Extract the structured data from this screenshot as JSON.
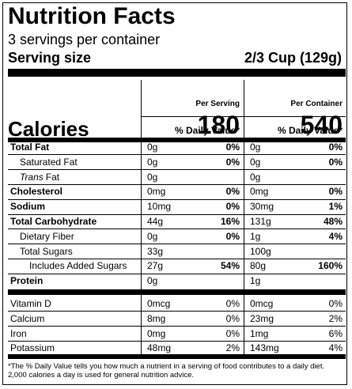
{
  "title": "Nutrition Facts",
  "servings": "3 servings per container",
  "serving_size": {
    "label": "Serving size",
    "value": "2/3 Cup (129g)"
  },
  "columns": [
    {
      "header": "Per Serving",
      "calories": "180",
      "dv_header": "% Daily Value*"
    },
    {
      "header": "Per Container",
      "calories": "540",
      "dv_header": "% Daily Value*"
    }
  ],
  "calories_label": "Calories",
  "nutrients": [
    {
      "name": "Total Fat",
      "bold": true,
      "indent": 0,
      "cells": [
        {
          "amount": "0g",
          "dv": "0%"
        },
        {
          "amount": "0g",
          "dv": "0%"
        }
      ]
    },
    {
      "name": "Saturated Fat",
      "bold": false,
      "indent": 1,
      "cells": [
        {
          "amount": "0g",
          "dv": "0%"
        },
        {
          "amount": "0g",
          "dv": "0%"
        }
      ]
    },
    {
      "name_italic": "Trans",
      "name": "Fat",
      "bold": false,
      "indent": 1,
      "cells": [
        {
          "amount": "0g"
        },
        {
          "amount": "0g"
        }
      ]
    },
    {
      "name": "Cholesterol",
      "bold": true,
      "indent": 0,
      "cells": [
        {
          "amount": "0mg",
          "dv": "0%"
        },
        {
          "amount": "0mg",
          "dv": "0%"
        }
      ]
    },
    {
      "name": "Sodium",
      "bold": true,
      "indent": 0,
      "cells": [
        {
          "amount": "10mg",
          "dv": "0%"
        },
        {
          "amount": "30mg",
          "dv": "1%"
        }
      ]
    },
    {
      "name": "Total Carbohydrate",
      "bold": true,
      "indent": 0,
      "cells": [
        {
          "amount": "44g",
          "dv": "16%"
        },
        {
          "amount": "131g",
          "dv": "48%"
        }
      ]
    },
    {
      "name": "Dietary Fiber",
      "bold": false,
      "indent": 1,
      "cells": [
        {
          "amount": "0g",
          "dv": "0%"
        },
        {
          "amount": "1g",
          "dv": "4%"
        }
      ]
    },
    {
      "name": "Total Sugars",
      "bold": false,
      "indent": 1,
      "cells": [
        {
          "amount": "33g"
        },
        {
          "amount": "100g"
        }
      ]
    },
    {
      "name": "Includes Added Sugars",
      "bold": false,
      "indent": 2,
      "cells": [
        {
          "amount": "27g",
          "dv": "54%"
        },
        {
          "amount": "80g",
          "dv": "160%"
        }
      ]
    },
    {
      "name": "Protein",
      "bold": true,
      "indent": 0,
      "cells": [
        {
          "amount": "0g"
        },
        {
          "amount": "1g"
        }
      ]
    }
  ],
  "vitamins": [
    {
      "name": "Vitamin D",
      "cells": [
        {
          "amount": "0mcg",
          "dv": "0%"
        },
        {
          "amount": "0mcg",
          "dv": "0%"
        }
      ]
    },
    {
      "name": "Calcium",
      "cells": [
        {
          "amount": "8mg",
          "dv": "0%"
        },
        {
          "amount": "23mg",
          "dv": "2%"
        }
      ]
    },
    {
      "name": "Iron",
      "cells": [
        {
          "amount": "0mg",
          "dv": "0%"
        },
        {
          "amount": "1mg",
          "dv": "6%"
        }
      ]
    },
    {
      "name": "Potassium",
      "cells": [
        {
          "amount": "48mg",
          "dv": "2%"
        },
        {
          "amount": "143mg",
          "dv": "4%"
        }
      ]
    }
  ],
  "footnote": [
    "*The % Daily Value tells you how much a nutrient in a serving of food contributes to a daily diet.",
    "2,000 calories a day is used for general nutrition advice."
  ]
}
